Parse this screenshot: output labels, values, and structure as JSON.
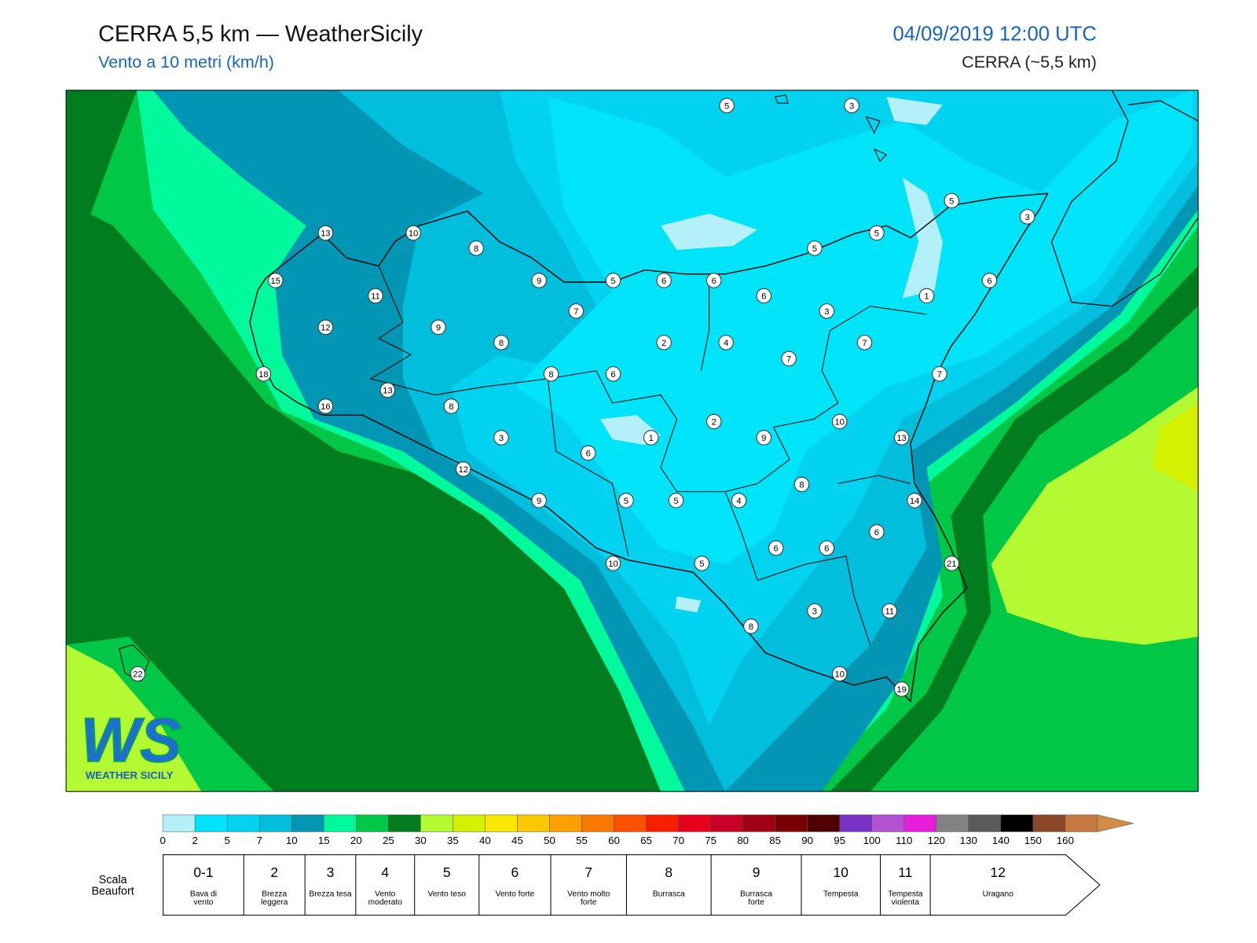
{
  "header": {
    "title": "CERRA 5,5 km — WeatherSicily",
    "subtitle": "Vento a 10 metri (km/h)",
    "datetime": "04/09/2019 12:00 UTC",
    "model": "CERRA (~5,5 km)"
  },
  "stations": [
    5,
    3,
    5,
    3,
    13,
    10,
    8,
    5,
    5,
    15,
    11,
    9,
    5,
    6,
    6,
    6,
    1,
    6,
    7,
    3,
    12,
    9,
    8,
    2,
    4,
    7,
    7,
    18,
    8,
    6,
    7,
    13,
    8,
    16,
    2,
    10,
    3,
    1,
    9,
    13,
    6,
    12,
    8,
    9,
    5,
    5,
    4,
    14,
    6,
    6,
    6,
    10,
    5,
    21,
    3,
    11,
    8,
    22,
    10,
    19
  ],
  "colorbar": {
    "ticks": [
      0,
      2,
      5,
      7,
      10,
      15,
      20,
      25,
      30,
      35,
      40,
      45,
      50,
      55,
      60,
      65,
      70,
      75,
      80,
      85,
      90,
      95,
      100,
      110,
      120,
      130,
      140,
      150,
      160
    ],
    "colors": [
      "#b4f0fa",
      "#00e4fa",
      "#00d2f0",
      "#00bedc",
      "#0096b4",
      "#00fa9b",
      "#00c846",
      "#007d1e",
      "#b4fa32",
      "#d2f000",
      "#fae600",
      "#fac800",
      "#faa000",
      "#fa7800",
      "#fa5000",
      "#fa1e00",
      "#e6001e",
      "#c80028",
      "#a00014",
      "#780000",
      "#500000",
      "#7832c8",
      "#b450d2",
      "#e61edc",
      "#828282",
      "#5a5a5a",
      "#000000",
      "#8c4628",
      "#c87841"
    ],
    "arrow_color": "#d28c46"
  },
  "beaufort": {
    "label": "Scala Beaufort",
    "classes": [
      {
        "force": "0-1",
        "name": "Bava di vento"
      },
      {
        "force": "2",
        "name": "Brezza leggera"
      },
      {
        "force": "3",
        "name": "Brezza tesa"
      },
      {
        "force": "4",
        "name": "Vento moderato"
      },
      {
        "force": "5",
        "name": "Vento teso"
      },
      {
        "force": "6",
        "name": "Vento forte"
      },
      {
        "force": "7",
        "name": "Vento molto forte"
      },
      {
        "force": "8",
        "name": "Burrasca"
      },
      {
        "force": "9",
        "name": "Burrasca forte"
      },
      {
        "force": "10",
        "name": "Tempesta"
      },
      {
        "force": "11",
        "name": "Tempesta violenta"
      },
      {
        "force": "12",
        "name": "Uragano"
      }
    ]
  },
  "logo": {
    "mark": "WS",
    "text": "WEATHER SICILY"
  }
}
